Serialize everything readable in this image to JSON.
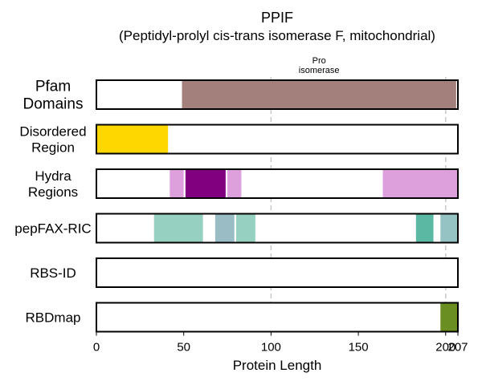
{
  "chart_data": {
    "type": "bar",
    "title": "PPIF",
    "subtitle": "(Peptidyl-prolyl cis-trans isomerase F, mitochondrial)",
    "xlabel": "Protein Length",
    "xlim": [
      0,
      207
    ],
    "x_ticks": [
      0,
      50,
      100,
      150,
      200,
      207
    ],
    "tick_labels": [
      "0",
      "50",
      "100",
      "150",
      "200",
      "207"
    ],
    "reference_lines": [
      100,
      200
    ],
    "grid": false,
    "legend": "none",
    "tracks": [
      {
        "label_lines": [
          "Pfam",
          "Domains"
        ],
        "segments": [
          {
            "start": 49,
            "end": 206,
            "color": "#a3807b",
            "label_lines": [
              "Pro",
              "isomerase"
            ]
          }
        ]
      },
      {
        "label_lines": [
          "Disordered",
          "Region"
        ],
        "segments": [
          {
            "start": 0,
            "end": 41,
            "color": "#ffd700"
          }
        ]
      },
      {
        "label_lines": [
          "Hydra",
          "Regions"
        ],
        "segments": [
          {
            "start": 42,
            "end": 50,
            "color": "#dda0dd"
          },
          {
            "start": 51,
            "end": 74,
            "color": "#800080"
          },
          {
            "start": 75,
            "end": 83,
            "color": "#dda0dd"
          },
          {
            "start": 164,
            "end": 207,
            "color": "#dda0dd"
          }
        ]
      },
      {
        "label_lines": [
          "pepFAX-RIC"
        ],
        "segments": [
          {
            "start": 33,
            "end": 61,
            "color": "#95d0c1"
          },
          {
            "start": 68,
            "end": 79,
            "color": "#9abcc5"
          },
          {
            "start": 80,
            "end": 91,
            "color": "#95d0c1"
          },
          {
            "start": 183,
            "end": 193,
            "color": "#5bb8a3"
          },
          {
            "start": 197,
            "end": 207,
            "color": "#95c3c3"
          }
        ]
      },
      {
        "label_lines": [
          "RBS-ID"
        ],
        "segments": []
      },
      {
        "label_lines": [
          "RBDmap"
        ],
        "segments": [
          {
            "start": 197,
            "end": 207,
            "color": "#6b8e23"
          }
        ]
      }
    ]
  }
}
